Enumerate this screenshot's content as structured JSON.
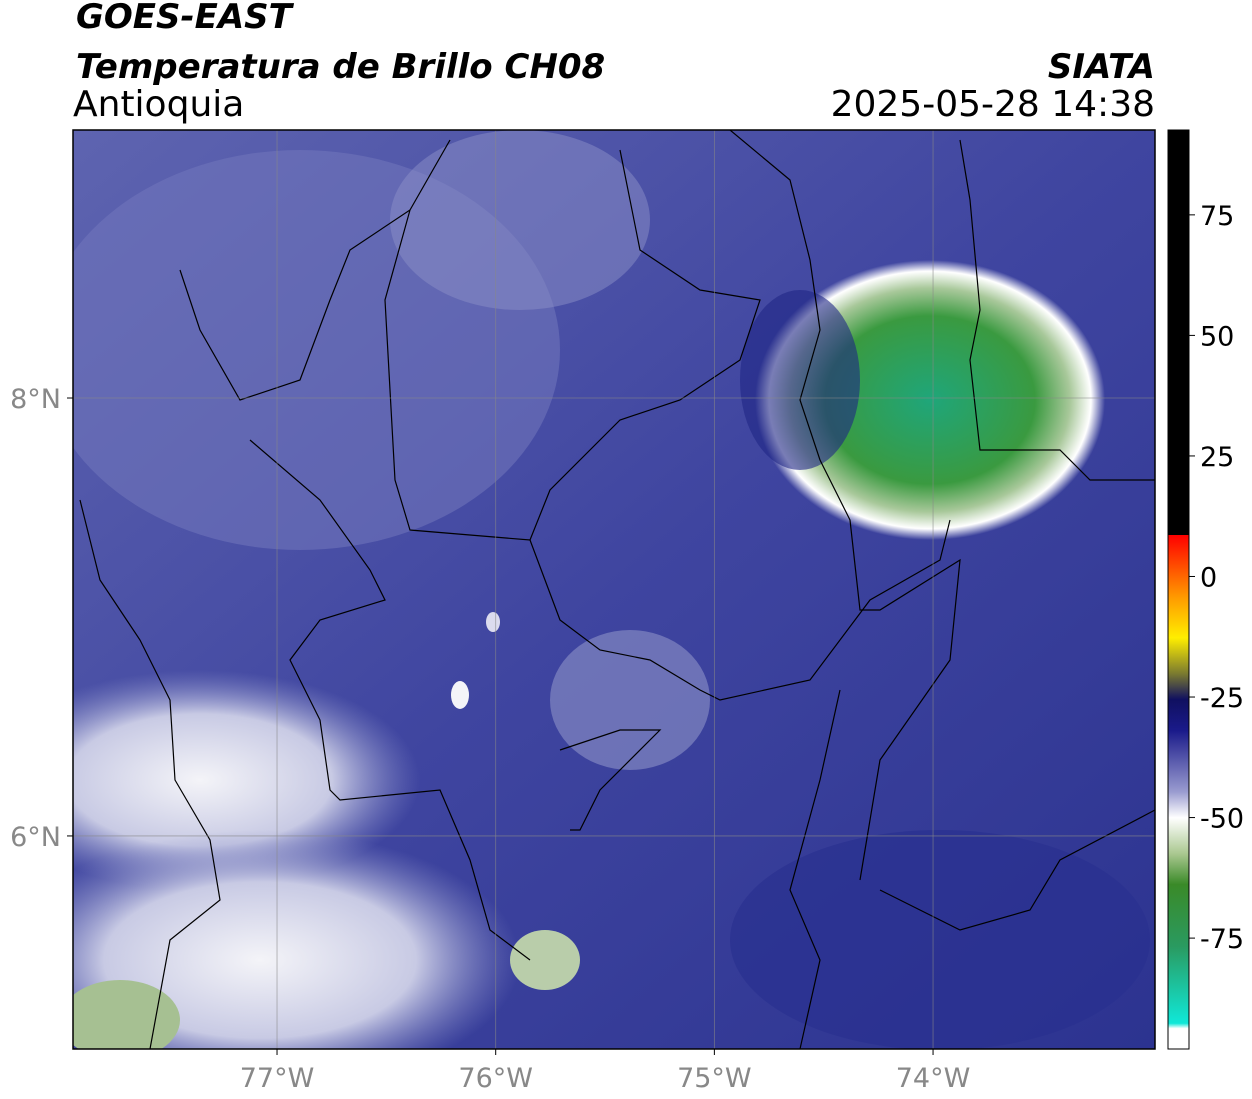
{
  "header": {
    "title": "GOES-EAST",
    "subtitle": "Temperatura de Brillo CH08",
    "region": "Antioquia",
    "source": "SIATA",
    "timestamp": "2025-05-28 14:38"
  },
  "map": {
    "lon_range": [
      -77.933,
      -72.985
    ],
    "lat_range": [
      5.027,
      9.224
    ],
    "lat_ticks": [
      {
        "value": 8,
        "label": "8°N"
      },
      {
        "value": 6,
        "label": "6°N"
      }
    ],
    "lon_ticks": [
      {
        "value": -77,
        "label": "77°W"
      },
      {
        "value": -76,
        "label": "76°W"
      },
      {
        "value": -75,
        "label": "75°W"
      },
      {
        "value": -74,
        "label": "74°W"
      }
    ]
  },
  "colorbar": {
    "range": [
      -98,
      92.6
    ],
    "ticks": [
      75,
      50,
      25,
      0,
      -25,
      -50,
      -75
    ]
  }
}
